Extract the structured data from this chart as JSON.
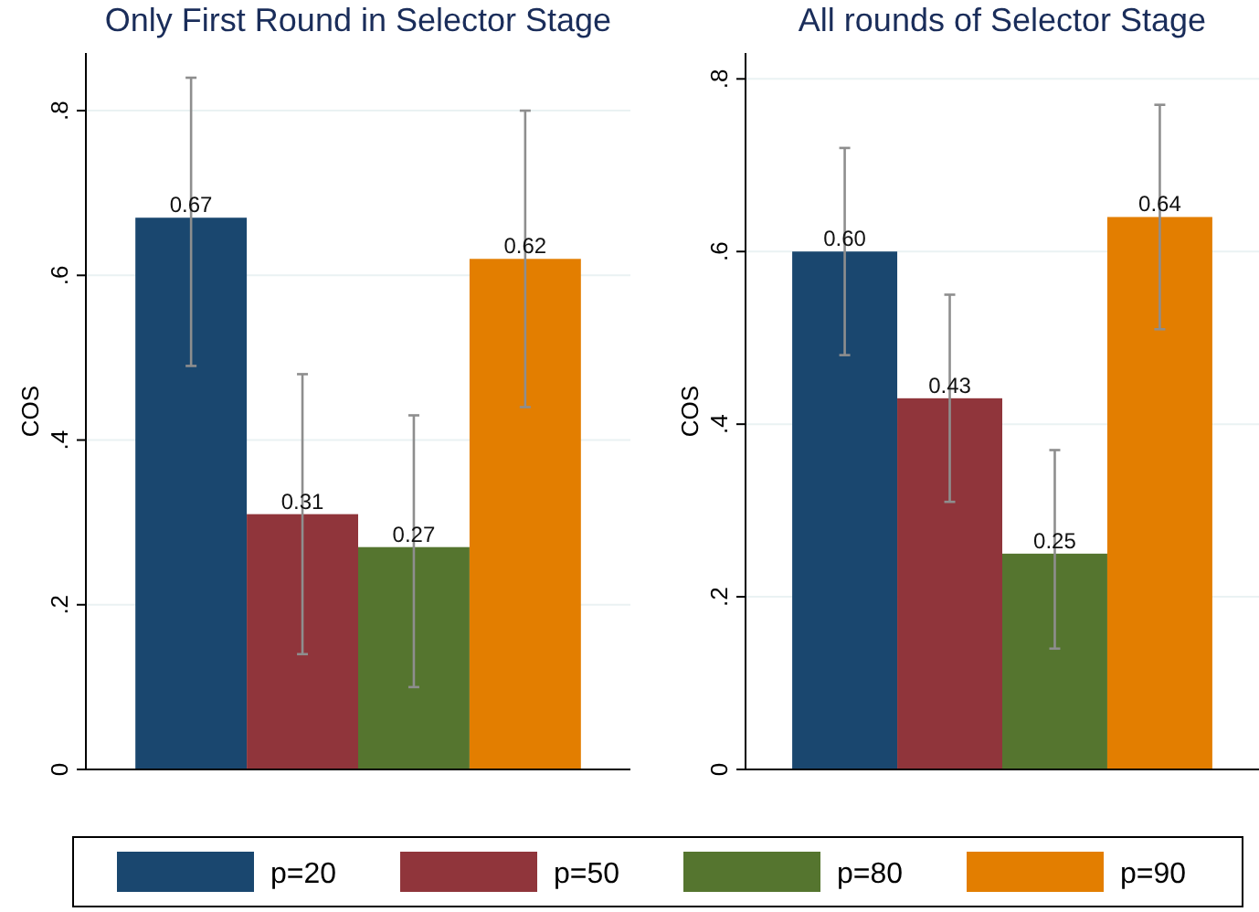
{
  "chart_data": [
    {
      "type": "bar",
      "title": "Only First Round in Selector Stage",
      "ylabel": "COS",
      "categories": [
        null
      ],
      "ylim": [
        0,
        0.87
      ],
      "yticks": [
        0,
        {
          "value": 0.2,
          "label": ".2"
        },
        {
          "value": 0.4,
          "label": ".4"
        },
        {
          "value": 0.6,
          "label": ".6"
        },
        {
          "value": 0.8,
          "label": ".8"
        }
      ],
      "grid": "y",
      "legend": "bottom",
      "series": [
        {
          "name": "p=20",
          "color": "#1a476f",
          "values": [
            0.67
          ],
          "errors": [
            [
              0.49,
              0.84
            ]
          ],
          "value_labels": [
            "0.67"
          ]
        },
        {
          "name": "p=50",
          "color": "#90353b",
          "values": [
            0.31
          ],
          "errors": [
            [
              0.14,
              0.48
            ]
          ],
          "value_labels": [
            "0.31"
          ]
        },
        {
          "name": "p=80",
          "color": "#55752f",
          "values": [
            0.27
          ],
          "errors": [
            [
              0.1,
              0.43
            ]
          ],
          "value_labels": [
            "0.27"
          ]
        },
        {
          "name": "p=90",
          "color": "#e37e00",
          "values": [
            0.62
          ],
          "errors": [
            [
              0.44,
              0.8
            ]
          ],
          "value_labels": [
            "0.62"
          ]
        }
      ]
    },
    {
      "type": "bar",
      "title": "All rounds of Selector Stage",
      "ylabel": "COS",
      "categories": [
        null
      ],
      "ylim": [
        0,
        0.83
      ],
      "yticks": [
        0,
        {
          "value": 0.2,
          "label": ".2"
        },
        {
          "value": 0.4,
          "label": ".4"
        },
        {
          "value": 0.6,
          "label": ".6"
        },
        {
          "value": 0.8,
          "label": ".8"
        }
      ],
      "grid": "y",
      "legend": "bottom",
      "series": [
        {
          "name": "p=20",
          "color": "#1a476f",
          "values": [
            0.6
          ],
          "errors": [
            [
              0.48,
              0.72
            ]
          ],
          "value_labels": [
            "0.60"
          ]
        },
        {
          "name": "p=50",
          "color": "#90353b",
          "values": [
            0.43
          ],
          "errors": [
            [
              0.31,
              0.55
            ]
          ],
          "value_labels": [
            "0.43"
          ]
        },
        {
          "name": "p=80",
          "color": "#55752f",
          "values": [
            0.25
          ],
          "errors": [
            [
              0.14,
              0.37
            ]
          ],
          "value_labels": [
            "0.25"
          ]
        },
        {
          "name": "p=90",
          "color": "#e37e00",
          "values": [
            0.64
          ],
          "errors": [
            [
              0.51,
              0.77
            ]
          ],
          "value_labels": [
            "0.64"
          ]
        }
      ]
    }
  ]
}
